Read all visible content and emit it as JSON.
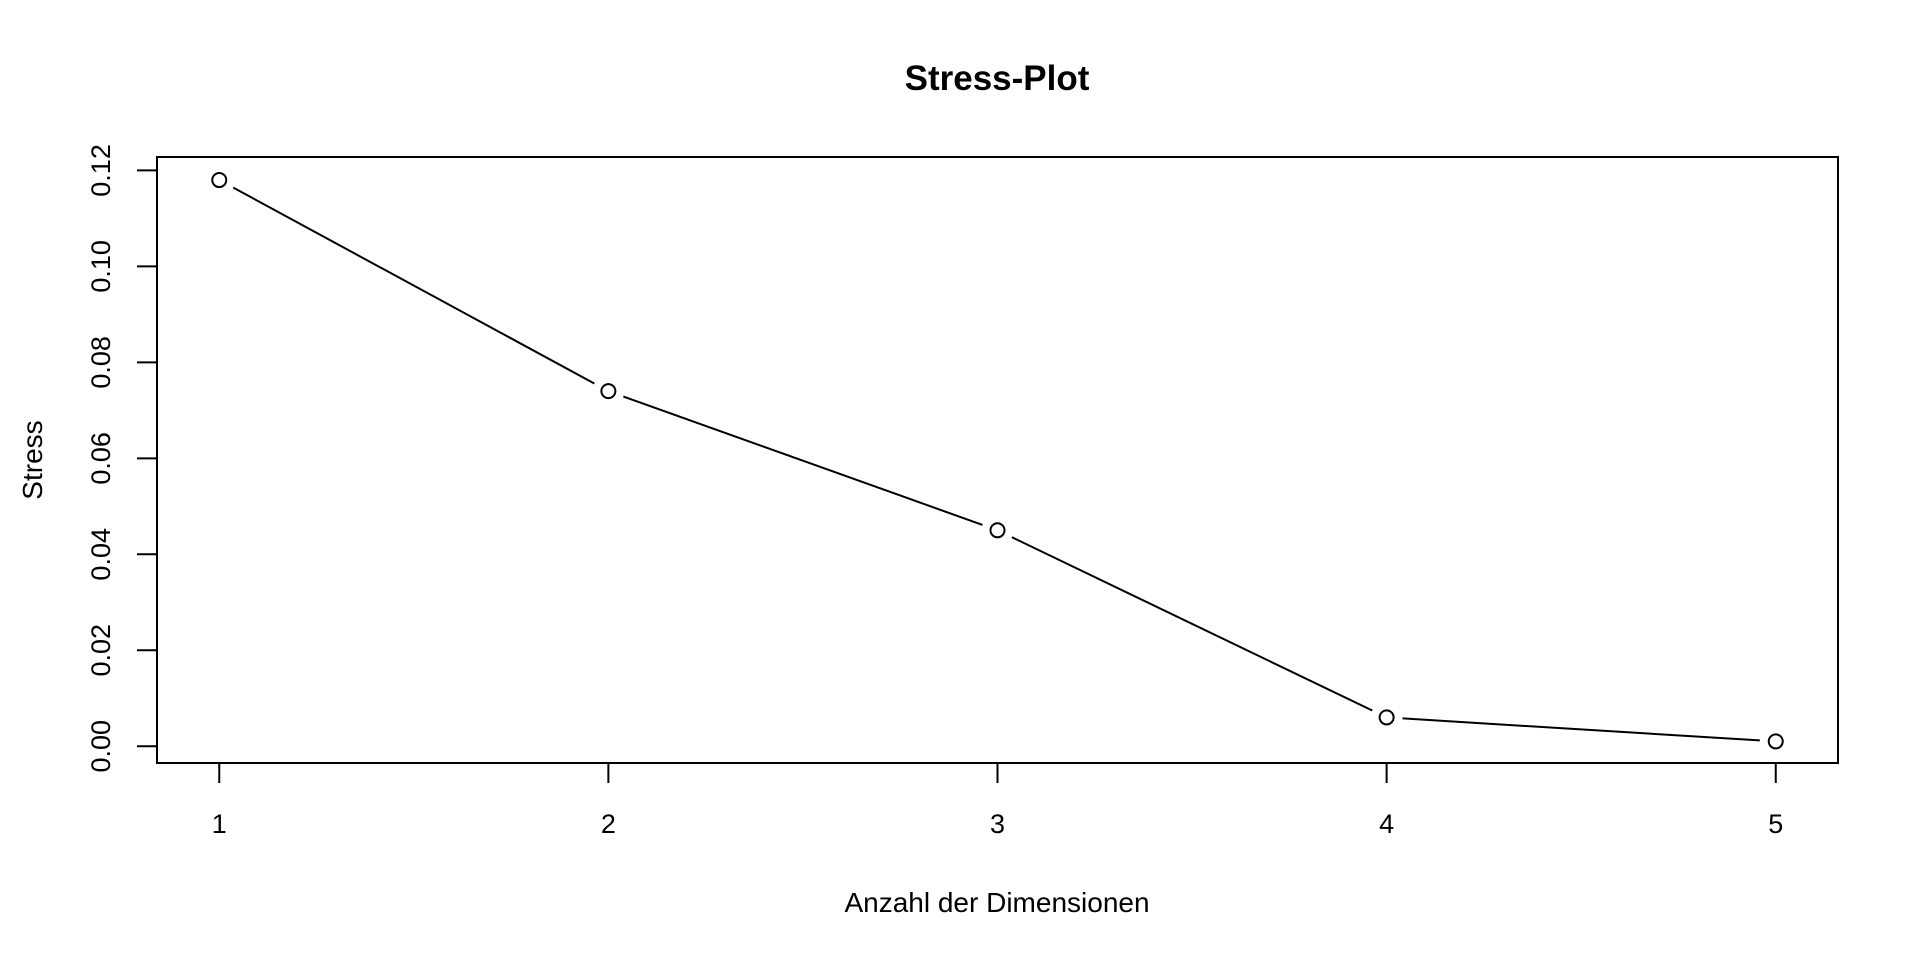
{
  "chart_data": {
    "type": "line",
    "title": "Stress-Plot",
    "xlabel": "Anzahl der Dimensionen",
    "ylabel": "Stress",
    "x": [
      1,
      2,
      3,
      4,
      5
    ],
    "values": [
      0.118,
      0.074,
      0.045,
      0.006,
      0.001
    ],
    "x_ticks": [
      "1",
      "2",
      "3",
      "4",
      "5"
    ],
    "y_ticks": [
      "0.00",
      "0.02",
      "0.04",
      "0.06",
      "0.08",
      "0.10",
      "0.12"
    ],
    "xlim": [
      0.84,
      5.16
    ],
    "ylim": [
      -0.0035,
      0.1228
    ],
    "grid": false,
    "legend": "none",
    "marker": "open-circle",
    "line_color": "#000000",
    "axis_color": "#000000",
    "background_color": "#ffffff"
  }
}
